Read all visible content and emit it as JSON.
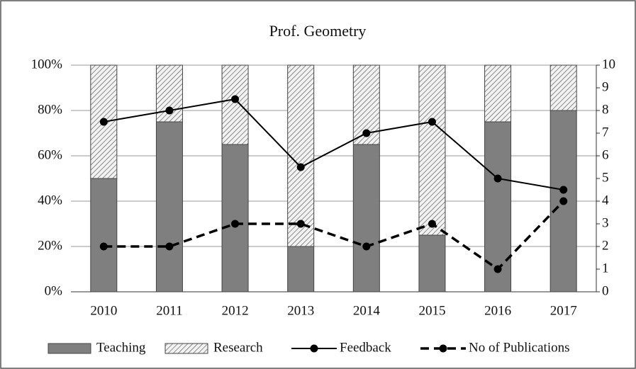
{
  "chart_data": {
    "type": "stacked-bar-line",
    "title": "Prof. Geometry",
    "categories": [
      "2010",
      "2011",
      "2012",
      "2013",
      "2014",
      "2015",
      "2016",
      "2017"
    ],
    "series": [
      {
        "name": "Teaching",
        "color": "#7f7f7f",
        "kind": "bar",
        "values": [
          50,
          75,
          65,
          20,
          65,
          25,
          75,
          80
        ]
      },
      {
        "name": "Research",
        "color": "#d9d9d9",
        "kind": "bar",
        "pattern": "hatch",
        "values": [
          50,
          25,
          35,
          80,
          35,
          75,
          25,
          20
        ]
      },
      {
        "name": "Feedback",
        "color": "#000000",
        "kind": "line",
        "axis": "y2",
        "dash": "solid",
        "values": [
          7.5,
          8,
          8.5,
          5.5,
          7,
          7.5,
          5,
          4.5
        ]
      },
      {
        "name": "No of Publications",
        "color": "#000000",
        "kind": "line",
        "axis": "y2",
        "dash": "dashed",
        "values": [
          2,
          2,
          3,
          3,
          2,
          3,
          1,
          4
        ]
      }
    ],
    "ylim": [
      0,
      100
    ],
    "yticks": [
      {
        "value": 0,
        "label": "0%"
      },
      {
        "value": 20,
        "label": "20%"
      },
      {
        "value": 40,
        "label": "40%"
      },
      {
        "value": 60,
        "label": "60%"
      },
      {
        "value": 80,
        "label": "80%"
      },
      {
        "value": 100,
        "label": "100%"
      }
    ],
    "y2lim": [
      0,
      10
    ],
    "y2ticks": [
      0,
      1,
      2,
      3,
      4,
      5,
      6,
      7,
      8,
      9,
      10
    ],
    "grid": true,
    "legend": "bottom"
  }
}
